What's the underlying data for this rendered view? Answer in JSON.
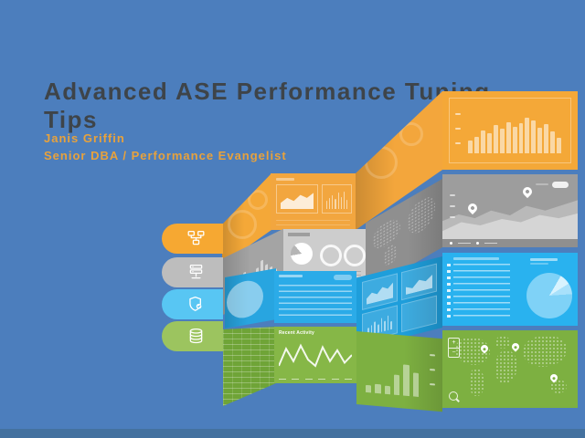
{
  "slide": {
    "title": "Advanced ASE Performance Tuning Tips",
    "presenter": "Janis Griffin",
    "role": "Senior DBA / Performance Evangelist"
  },
  "colors": {
    "bg": "#4C7EBD",
    "footer": "#44719F",
    "title_text": "#3E4449",
    "accent_text": "#E8A23C",
    "orange": "#F4A838",
    "orange_deep": "#EE9D31",
    "gray": "#9D9D9D",
    "gray_light": "#CBCBCB",
    "gray_dark": "#8C8C8C",
    "blue": "#29B2EF",
    "blue_mid": "#2BABE8",
    "blue_dark": "#1E9EDB",
    "blue_pale": "#8BD5F7",
    "green": "#7DB041",
    "green_mid": "#86B747",
    "green_dark": "#6FA437",
    "tab_orange": "#F6A832",
    "tab_gray": "#BDBDBD",
    "tab_blue": "#58C6F3",
    "tab_green": "#9CC45F"
  },
  "illustration": {
    "tabs": [
      {
        "icon": "network-icon"
      },
      {
        "icon": "server-icon"
      },
      {
        "icon": "shield-check-icon"
      },
      {
        "icon": "database-icon"
      }
    ],
    "activity_panel_title": "Recent Activity",
    "orange_bars": [
      28,
      36,
      50,
      44,
      62,
      54,
      68,
      58,
      66,
      78,
      72,
      56,
      64,
      48,
      34
    ],
    "gray_bars": [
      22,
      34,
      46,
      60,
      46,
      36,
      54,
      68,
      52,
      40,
      28
    ],
    "mid_bars": [
      40,
      55,
      70,
      50,
      80,
      60,
      85,
      45
    ],
    "green_bars": [
      16,
      20,
      18,
      42,
      66,
      50
    ],
    "activity_line": [
      34,
      12,
      28,
      8,
      26,
      34,
      10,
      28,
      14,
      30,
      20
    ]
  }
}
